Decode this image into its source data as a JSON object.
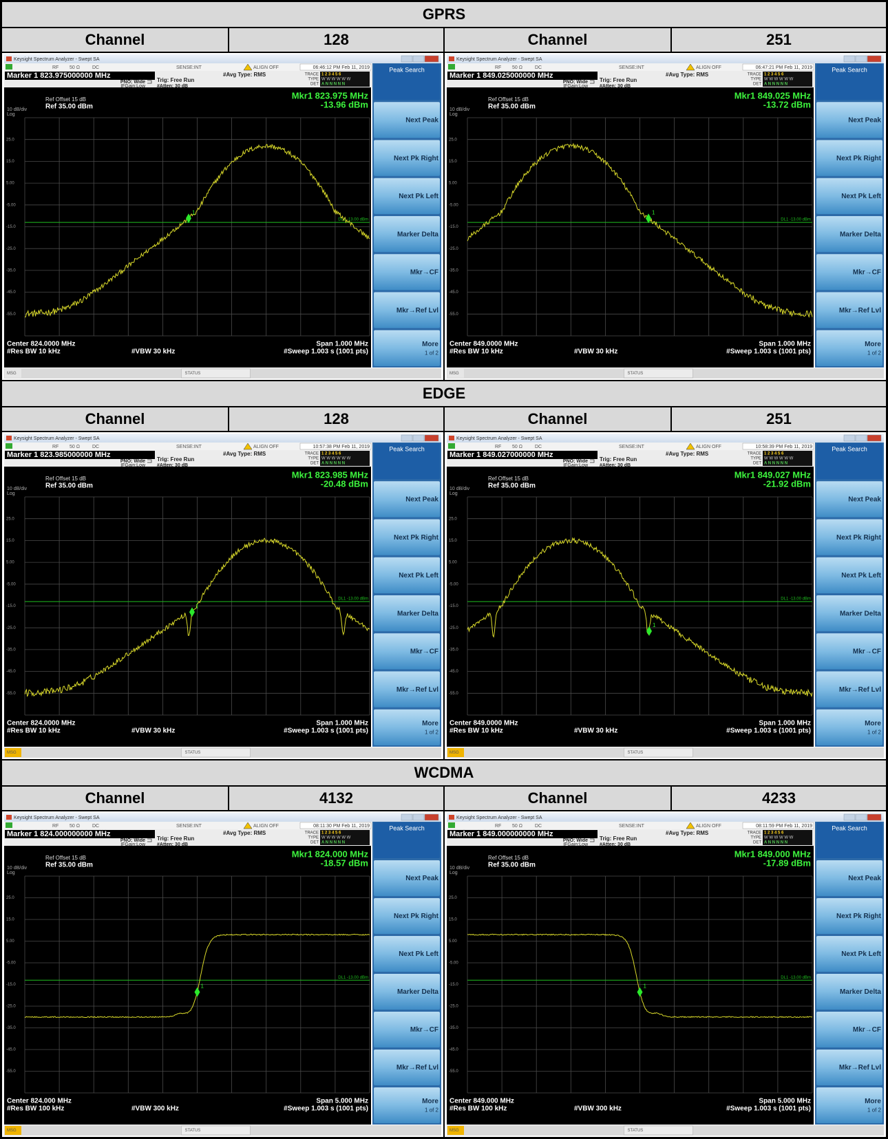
{
  "analyzer": {
    "window_title": "Keysight Spectrum Analyzer - Swept SA",
    "rf": "RF",
    "impedance": "50 Ω",
    "coupling": "DC",
    "sense": "SENSE:INT",
    "align": "ALIGN OFF",
    "avg_type": "#Avg Type: RMS",
    "pno": "PNO: Wide",
    "ifgain": "IFGain:Low",
    "trig": "Trig: Free Run",
    "atten": "#Atten: 30 dB",
    "trace_label": "TRACE",
    "trace_digits": "1 2 3 4 5 6",
    "type_label": "TYPE",
    "type_values": "W W W W W W",
    "det_label": "DET",
    "det_values": "A N N N N N",
    "ref_offset": "Ref Offset 15 dB",
    "scale": "10 dB/div",
    "ref_level": "Ref 35.00 dBm",
    "log": "Log",
    "y_labels": [
      "25.0",
      "15.0",
      "5.00",
      "-5.00",
      "-15.0",
      "-25.0",
      "-35.0",
      "-45.0",
      "-55.0"
    ],
    "display_line": "DL1 -13.00 dBm",
    "marker_tag": "1",
    "sweep": "#Sweep  1.003 s (1001 pts)",
    "msg": "MSG",
    "status": "STATUS",
    "softkeys": [
      "Peak Search",
      "Next Peak",
      "Next Pk Right",
      "Next Pk Left",
      "Marker Delta",
      "Mkr→CF",
      "Mkr→Ref Lvl",
      "More"
    ],
    "more_page": "1 of 2"
  },
  "sections": [
    {
      "title": "GPRS",
      "header": [
        "Channel",
        "128",
        "Channel",
        "251"
      ],
      "panels": [
        {
          "time": "06:46:12 PM Feb 11, 2019",
          "marker": "Marker 1 823.975000000 MHz",
          "mkr_freq": "Mkr1 823.975 MHz",
          "mkr_level": "-13.96 dBm",
          "center": "Center 824.0000 MHz",
          "res_bw": "#Res BW 10 kHz",
          "vbw": "#VBW 30 kHz",
          "span": "Span 1.000 MHz"
        },
        {
          "time": "06:47:21 PM Feb 11, 2019",
          "marker": "Marker 1 849.025000000 MHz",
          "mkr_freq": "Mkr1 849.025 MHz",
          "mkr_level": "-13.72 dBm",
          "center": "Center 849.0000 MHz",
          "res_bw": "#Res BW 10 kHz",
          "vbw": "#VBW 30 kHz",
          "span": "Span 1.000 MHz"
        }
      ]
    },
    {
      "title": "EDGE",
      "header": [
        "Channel",
        "128",
        "Channel",
        "251"
      ],
      "panels": [
        {
          "time": "10:57:38 PM Feb 11, 2019",
          "marker": "Marker 1 823.985000000 MHz",
          "mkr_freq": "Mkr1 823.985 MHz",
          "mkr_level": "-20.48 dBm",
          "center": "Center 824.0000 MHz",
          "res_bw": "#Res BW 10 kHz",
          "vbw": "#VBW 30 kHz",
          "span": "Span 1.000 MHz"
        },
        {
          "time": "10:58:39 PM Feb 11, 2019",
          "marker": "Marker 1 849.027000000 MHz",
          "mkr_freq": "Mkr1 849.027 MHz",
          "mkr_level": "-21.92 dBm",
          "center": "Center 849.0000 MHz",
          "res_bw": "#Res BW 10 kHz",
          "vbw": "#VBW 30 kHz",
          "span": "Span 1.000 MHz"
        }
      ]
    },
    {
      "title": "WCDMA",
      "header": [
        "Channel",
        "4132",
        "Channel",
        "4233"
      ],
      "panels": [
        {
          "time": "08:11:30 PM Feb 11, 2019",
          "marker": "Marker 1 824.000000000 MHz",
          "mkr_freq": "Mkr1 824.000 MHz",
          "mkr_level": "-18.57 dBm",
          "center": "Center 824.000 MHz",
          "res_bw": "#Res BW 100 kHz",
          "vbw": "#VBW 300 kHz",
          "span": "Span 5.000 MHz"
        },
        {
          "time": "08:11:59 PM Feb 11, 2019",
          "marker": "Marker 1 849.000000000 MHz",
          "mkr_freq": "Mkr1 849.000 MHz",
          "mkr_level": "-17.89 dBm",
          "center": "Center 849.000 MHz",
          "res_bw": "#Res BW 100 kHz",
          "vbw": "#VBW 300 kHz",
          "span": "Span 5.000 MHz"
        }
      ]
    }
  ]
}
